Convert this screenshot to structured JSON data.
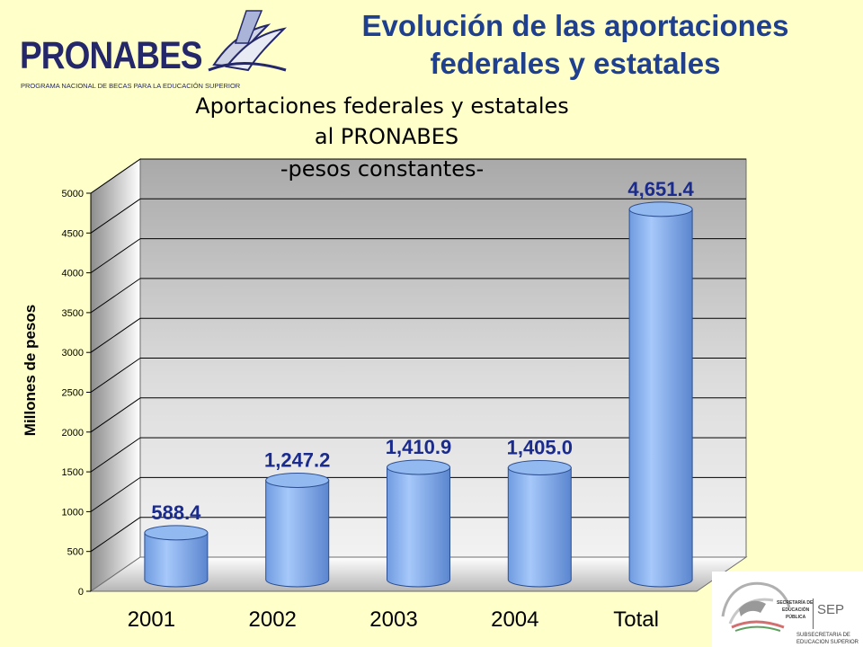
{
  "slide": {
    "title_line1": "Evolución de las aportaciones",
    "title_line2": "federales y estatales"
  },
  "logo": {
    "name": "PRONABES",
    "subtitle": "PROGRAMA NACIONAL DE BECAS PARA LA EDUCACIÓN SUPERIOR"
  },
  "seal": {
    "left_text": [
      "SECRETARÍA DE",
      "EDUCACIÓN",
      "PÚBLICA"
    ],
    "initials": "SEP",
    "bottom_text": [
      "SUBSECRETARIA DE",
      "EDUCACION SUPERIOR"
    ]
  },
  "colors": {
    "background": "#ffffc9",
    "title": "#1f3f8f",
    "bar_fill": "#86b0ec",
    "data_label": "#1a2b8c"
  },
  "chart_data": {
    "type": "bar",
    "style": "3d-cylinder",
    "title_lines": [
      "Aportaciones federales y estatales",
      "al PRONABES",
      "-pesos constantes-"
    ],
    "xlabel": "",
    "ylabel": "Millones de pesos",
    "categories": [
      "2001",
      "2002",
      "2003",
      "2004",
      "Total"
    ],
    "values": [
      588.4,
      1247.2,
      1410.9,
      1405.0,
      4651.4
    ],
    "value_labels": [
      "588.4",
      "1,247.2",
      "1,410.9",
      "1,405.0",
      "4,651.4"
    ],
    "ylim": [
      0,
      5000
    ],
    "yticks": [
      "0",
      "500",
      "1000",
      "1500",
      "2000",
      "2500",
      "3000",
      "3500",
      "4000",
      "4500",
      "5000"
    ],
    "grid": true,
    "legend": "none"
  }
}
